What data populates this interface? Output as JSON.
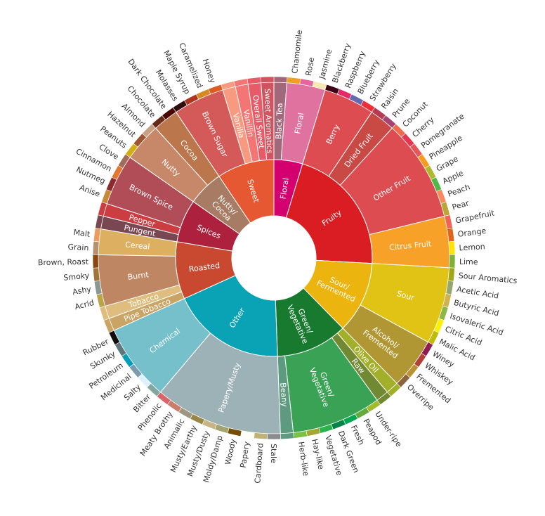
{
  "chart_data": {
    "type": "sunburst",
    "title": "",
    "levels": 3,
    "tree": [
      {
        "name": "Floral",
        "color": "#d4006f",
        "children": [
          {
            "name": "Black Tea",
            "color": "#a06878",
            "children": [
              {
                "name": "",
                "color": "#a06878"
              }
            ]
          },
          {
            "name": "Floral",
            "color": "#e072a0",
            "children": [
              {
                "name": "Chamomile",
                "color": "#f0a020"
              },
              {
                "name": "Rose",
                "color": "#e8649a"
              },
              {
                "name": "Jasmine",
                "color": "#f5e8b0"
              }
            ]
          }
        ]
      },
      {
        "name": "Fruity",
        "color": "#da1d23",
        "children": [
          {
            "name": "Berry",
            "color": "#dd4c51",
            "children": [
              {
                "name": "Blackberry",
                "color": "#3e0317"
              },
              {
                "name": "Raspberry",
                "color": "#e62969"
              },
              {
                "name": "Blueberry",
                "color": "#6569b0"
              },
              {
                "name": "Strawberry",
                "color": "#ef2d36"
              }
            ]
          },
          {
            "name": "Dried Fruit",
            "color": "#c94a44",
            "children": [
              {
                "name": "Raisin",
                "color": "#b53b54"
              },
              {
                "name": "Prune",
                "color": "#a5446f"
              }
            ]
          },
          {
            "name": "Other Fruit",
            "color": "#dd4c51",
            "children": [
              {
                "name": "Coconut",
                "color": "#f2684b"
              },
              {
                "name": "Cherry",
                "color": "#e73451"
              },
              {
                "name": "Pomegranate",
                "color": "#e65656"
              },
              {
                "name": "Pineapple",
                "color": "#f89a1c"
              },
              {
                "name": "Grape",
                "color": "#aeb92c"
              },
              {
                "name": "Apple",
                "color": "#4eb849"
              },
              {
                "name": "Peach",
                "color": "#f68a5c"
              },
              {
                "name": "Pear",
                "color": "#baa635"
              }
            ]
          },
          {
            "name": "Citrus Fruit",
            "color": "#f7a128",
            "children": [
              {
                "name": "Grapefruit",
                "color": "#f26355"
              },
              {
                "name": "Orange",
                "color": "#e2631e"
              },
              {
                "name": "Lemon",
                "color": "#fde404"
              },
              {
                "name": "Lime",
                "color": "#7eb138"
              }
            ]
          }
        ]
      },
      {
        "name": "Sour/\nFermented",
        "color": "#ebb40f",
        "children": [
          {
            "name": "Sour",
            "color": "#e1c315",
            "children": [
              {
                "name": "Sour Aromatics",
                "color": "#9ea718"
              },
              {
                "name": "Acetic Acid",
                "color": "#94a76f"
              },
              {
                "name": "Butyric Acid",
                "color": "#d0b24f"
              },
              {
                "name": "Isovaleric Acid",
                "color": "#8eb646"
              },
              {
                "name": "Citric Acid",
                "color": "#faef07"
              },
              {
                "name": "Malic Acid",
                "color": "#c1ba07"
              }
            ]
          },
          {
            "name": "Alcohol/\nFremented",
            "color": "#b09733",
            "children": [
              {
                "name": "Winey",
                "color": "#8f1c53"
              },
              {
                "name": "Whiskey",
                "color": "#b34039"
              },
              {
                "name": "Fremented",
                "color": "#ba9232"
              },
              {
                "name": "Overripe",
                "color": "#8b6439"
              }
            ]
          }
        ]
      },
      {
        "name": "Green/\nVegetative",
        "color": "#187a2f",
        "children": [
          {
            "name": "Olive Oil",
            "color": "#a2b029",
            "children": [
              {
                "name": "",
                "color": "#a2b029"
              }
            ]
          },
          {
            "name": "Raw",
            "color": "#718933",
            "children": [
              {
                "name": "",
                "color": "#718933"
              }
            ]
          },
          {
            "name": "Green/\nVegetative",
            "color": "#3aa255",
            "children": [
              {
                "name": "Under-ripe",
                "color": "#a2bb2b"
              },
              {
                "name": "Peapod",
                "color": "#62aa3c"
              },
              {
                "name": "Fresh",
                "color": "#03a653"
              },
              {
                "name": "Dark Green",
                "color": "#038549"
              },
              {
                "name": "Vegetative",
                "color": "#28b44b"
              },
              {
                "name": "Hay-like",
                "color": "#a3a830"
              },
              {
                "name": "Herb-like",
                "color": "#7ac141"
              }
            ]
          },
          {
            "name": "Beany",
            "color": "#5e9a80",
            "children": [
              {
                "name": "",
                "color": "#5e9a80"
              }
            ]
          }
        ]
      },
      {
        "name": "Other",
        "color": "#0aa3b5",
        "children": [
          {
            "name": "Papery/Musty",
            "color": "#9db2b7",
            "children": [
              {
                "name": "Stale",
                "color": "#8b8c90"
              },
              {
                "name": "Cardboard",
                "color": "#beb276"
              },
              {
                "name": "Papery",
                "color": "#fefef4"
              },
              {
                "name": "Woody",
                "color": "#744e03"
              },
              {
                "name": "Moldy/Damp",
                "color": "#a3a36f"
              },
              {
                "name": "Musty/Dusty",
                "color": "#c9b583"
              },
              {
                "name": "Musty/Earthy",
                "color": "#978847"
              },
              {
                "name": "Animalic",
                "color": "#9d977f"
              },
              {
                "name": "Meaty Brothy",
                "color": "#cc7b6a"
              },
              {
                "name": "Phenolic",
                "color": "#db646a"
              }
            ]
          },
          {
            "name": "Chemical",
            "color": "#76c0cb",
            "children": [
              {
                "name": "Bitter",
                "color": "#80a89d"
              },
              {
                "name": "Salty",
                "color": "#def2fd"
              },
              {
                "name": "Medicinal",
                "color": "#7a9bae"
              },
              {
                "name": "Petroleum",
                "color": "#039fb8"
              },
              {
                "name": "Skunky",
                "color": "#5e777b"
              },
              {
                "name": "Rubber",
                "color": "#120c0c"
              }
            ]
          }
        ]
      },
      {
        "name": "Roasted",
        "color": "#c94930",
        "children": [
          {
            "name": "Pipe Tobacco",
            "color": "#caa465",
            "children": [
              {
                "name": "",
                "color": "#caa465"
              }
            ]
          },
          {
            "name": "Tobacco",
            "color": "#dfbd7e",
            "children": [
              {
                "name": "",
                "color": "#dfbd7e"
              }
            ]
          },
          {
            "name": "Burnt",
            "color": "#be8663",
            "children": [
              {
                "name": "Acrid",
                "color": "#b9a449"
              },
              {
                "name": "Ashy",
                "color": "#899893"
              },
              {
                "name": "Smoky",
                "color": "#a1743b"
              },
              {
                "name": "Brown, Roast",
                "color": "#894810"
              }
            ]
          },
          {
            "name": "Cereal",
            "color": "#ddaf61",
            "children": [
              {
                "name": "Grain",
                "color": "#b7906f"
              },
              {
                "name": "Malt",
                "color": "#eb9d5f"
              }
            ]
          }
        ]
      },
      {
        "name": "Spices",
        "color": "#ad213e",
        "children": [
          {
            "name": "Pungent",
            "color": "#794752",
            "children": [
              {
                "name": "",
                "color": "#794752"
              }
            ]
          },
          {
            "name": "Pepper",
            "color": "#cc3d41",
            "children": [
              {
                "name": "",
                "color": "#cc3d41"
              }
            ]
          },
          {
            "name": "Brown Spice",
            "color": "#b14d57",
            "children": [
              {
                "name": "Anise",
                "color": "#c78936"
              },
              {
                "name": "Nutmeg",
                "color": "#8c292c"
              },
              {
                "name": "Cinnamon",
                "color": "#e5762e"
              },
              {
                "name": "Clove",
                "color": "#a16c5a"
              }
            ]
          }
        ]
      },
      {
        "name": "Nutty/\nCocoa",
        "color": "#a87b64",
        "children": [
          {
            "name": "Nutty",
            "color": "#c78869",
            "children": [
              {
                "name": "Peanuts",
                "color": "#d4ad12"
              },
              {
                "name": "Hazelnut",
                "color": "#9d5433"
              },
              {
                "name": "Almond",
                "color": "#c89f83"
              }
            ]
          },
          {
            "name": "Cocoa",
            "color": "#bb764c",
            "children": [
              {
                "name": "Chocolate",
                "color": "#692a19"
              },
              {
                "name": "Dark Chocolate",
                "color": "#470604"
              }
            ]
          }
        ]
      },
      {
        "name": "Sweet",
        "color": "#e65832",
        "children": [
          {
            "name": "Brown Sugar",
            "color": "#d45a59",
            "children": [
              {
                "name": "Molasses",
                "color": "#310d0f"
              },
              {
                "name": "Maple Syrup",
                "color": "#ae341f"
              },
              {
                "name": "Caramelized",
                "color": "#d78823"
              },
              {
                "name": "Honey",
                "color": "#da5c1f"
              }
            ]
          },
          {
            "name": "Vanilla",
            "color": "#f89a80",
            "children": [
              {
                "name": "",
                "color": "#f89a80"
              }
            ]
          },
          {
            "name": "Vanillin",
            "color": "#f37674",
            "children": [
              {
                "name": "",
                "color": "#f37674"
              }
            ]
          },
          {
            "name": "Overall Sweet",
            "color": "#e75b68",
            "children": [
              {
                "name": "",
                "color": "#e75b68"
              }
            ]
          },
          {
            "name": "Sweet Aromatics",
            "color": "#d0545f",
            "children": [
              {
                "name": "",
                "color": "#d0545f"
              }
            ]
          }
        ]
      }
    ]
  }
}
